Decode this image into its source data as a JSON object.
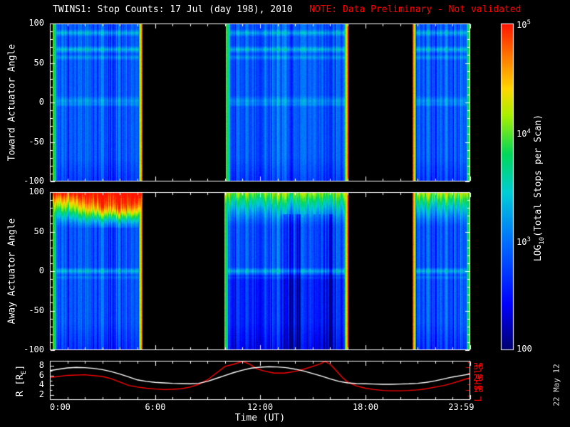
{
  "title": {
    "main": "TWINS1: Stop Counts: 17 Jul (day 198), 2010",
    "note": "NOTE: Data Preliminary - Not validated"
  },
  "datestamp": "22 May 12",
  "colors": {
    "background": "#000000",
    "foreground": "#ffffff",
    "note_red": "#ff0000"
  },
  "colorbar": {
    "label_pre": "LOG",
    "label_sub": "10",
    "label_post": "(Total Stops per Scan)",
    "ticks": [
      {
        "label": "10^5",
        "frac": 0
      },
      {
        "label": "10^4",
        "frac": 0.3333
      },
      {
        "label": "10^3",
        "frac": 0.6667
      },
      {
        "label": "100",
        "frac": 1
      }
    ],
    "vmin": 2,
    "vmax": 5,
    "stops": [
      [
        0,
        [
          0,
          0,
          110
        ]
      ],
      [
        0.14,
        [
          0,
          0,
          255
        ]
      ],
      [
        0.33,
        [
          0,
          110,
          255
        ]
      ],
      [
        0.48,
        [
          0,
          205,
          215
        ]
      ],
      [
        0.6,
        [
          0,
          215,
          90
        ]
      ],
      [
        0.72,
        [
          170,
          240,
          0
        ]
      ],
      [
        0.8,
        [
          255,
          215,
          0
        ]
      ],
      [
        0.9,
        [
          255,
          120,
          0
        ]
      ],
      [
        1,
        [
          255,
          20,
          0
        ]
      ]
    ]
  },
  "chart_data": [
    {
      "id": "toward",
      "type": "heatmap",
      "ylabel": "Toward Actuator Angle",
      "ylim": [
        -100,
        100
      ],
      "yticks": [
        100,
        50,
        0,
        -50,
        -100
      ],
      "x_range_hours": [
        0,
        24
      ],
      "base": 2.72,
      "stripe_amp": 0.85,
      "segments": [
        {
          "start": 0.15,
          "end": 5.3,
          "left_edge": 0.5,
          "right_edge": 1.0
        },
        {
          "start": 10.05,
          "end": 17.05,
          "left_edge": 0.45,
          "right_edge": 1.0
        },
        {
          "start": 20.7,
          "end": 24.0,
          "left_edge": 1.0,
          "right_edge": 0.45
        }
      ],
      "bands": [
        {
          "angle": 88,
          "width": 5,
          "boost": 0.45
        },
        {
          "angle": 67,
          "width": 5,
          "boost": 0.5
        },
        {
          "angle": 57,
          "width": 4,
          "boost": 0.3
        },
        {
          "angle": 2,
          "width": 7,
          "boost": 0.3
        },
        {
          "angle": -3,
          "width": 3,
          "boost": 0.15
        }
      ],
      "hot_top": false,
      "dark_below": -70,
      "dark_amp": 0.18
    },
    {
      "id": "away",
      "type": "heatmap",
      "ylabel": "Away Actuator Angle",
      "ylim": [
        -100,
        100
      ],
      "yticks": [
        100,
        50,
        0,
        -50,
        -100
      ],
      "x_range_hours": [
        0,
        24
      ],
      "base": 2.68,
      "stripe_amp": 0.9,
      "segments": [
        {
          "start": 0.15,
          "end": 5.3,
          "left_edge": 0.5,
          "right_edge": 1.0,
          "hot_amp": 1.0,
          "blob": {
            "hour": 3.8,
            "sigma": 1.7,
            "amp": 1.0
          }
        },
        {
          "start": 9.95,
          "end": 17.05,
          "left_edge": 0.5,
          "right_edge": 1.0,
          "hot_amp": 0.6,
          "adjust_below": -5,
          "adjust_amp": -0.22,
          "streaks": {
            "from": 13.2,
            "to": 16.4,
            "amp": 0.55
          }
        },
        {
          "start": 20.7,
          "end": 24.0,
          "left_edge": 1.0,
          "right_edge": 0.45,
          "hot_amp": 0.65
        }
      ],
      "bands": [
        {
          "angle": 0,
          "width": 5,
          "boost": 0.5
        },
        {
          "angle": -8,
          "width": 3,
          "boost": 0.2
        }
      ],
      "hot_top": true,
      "dark_below": -65,
      "dark_amp": 0.2
    },
    {
      "id": "orbit",
      "type": "line",
      "xlabel": "Time (UT)",
      "xticks": [
        {
          "hour": 0,
          "label": "0:00"
        },
        {
          "hour": 6,
          "label": "6:00"
        },
        {
          "hour": 12,
          "label": "12:00"
        },
        {
          "hour": 18,
          "label": "18:00"
        },
        {
          "hour": 24,
          "label": "23:59"
        }
      ],
      "left_axis": {
        "label_pre": "R [R",
        "label_sub": "E",
        "label_post": "]",
        "ticks": [
          8,
          6,
          4,
          2
        ],
        "range": [
          1,
          9
        ]
      },
      "right_axis": {
        "label": "L Shell",
        "ticks": [
          30,
          20,
          10
        ],
        "range": [
          1,
          36
        ],
        "color": "#ff0000"
      },
      "series": [
        {
          "name": "R",
          "axis": "left",
          "color": "#ffffff",
          "points": [
            [
              0,
              7.0
            ],
            [
              0.5,
              7.3
            ],
            [
              1,
              7.55
            ],
            [
              1.5,
              7.65
            ],
            [
              2,
              7.6
            ],
            [
              2.5,
              7.45
            ],
            [
              3,
              7.2
            ],
            [
              3.5,
              6.8
            ],
            [
              4,
              6.3
            ],
            [
              4.5,
              5.7
            ],
            [
              5,
              5.1
            ],
            [
              5.5,
              4.8
            ],
            [
              6,
              4.6
            ],
            [
              6.5,
              4.5
            ],
            [
              7,
              4.4
            ],
            [
              7.5,
              4.35
            ],
            [
              8,
              4.3
            ],
            [
              8.5,
              4.4
            ],
            [
              9,
              4.8
            ],
            [
              9.5,
              5.4
            ],
            [
              10,
              6.0
            ],
            [
              10.5,
              6.6
            ],
            [
              11,
              7.1
            ],
            [
              11.5,
              7.5
            ],
            [
              12,
              7.7
            ],
            [
              12.5,
              7.8
            ],
            [
              13,
              7.75
            ],
            [
              13.5,
              7.6
            ],
            [
              14,
              7.3
            ],
            [
              14.5,
              6.9
            ],
            [
              15,
              6.4
            ],
            [
              15.5,
              5.9
            ],
            [
              16,
              5.3
            ],
            [
              16.5,
              4.8
            ],
            [
              17,
              4.5
            ],
            [
              17.5,
              4.35
            ],
            [
              18,
              4.3
            ],
            [
              18.5,
              4.25
            ],
            [
              19,
              4.2
            ],
            [
              19.5,
              4.2
            ],
            [
              20,
              4.25
            ],
            [
              20.5,
              4.3
            ],
            [
              21,
              4.4
            ],
            [
              21.5,
              4.6
            ],
            [
              22,
              4.9
            ],
            [
              22.5,
              5.3
            ],
            [
              23,
              5.7
            ],
            [
              23.5,
              6.0
            ],
            [
              24,
              6.3
            ]
          ]
        },
        {
          "name": "L Shell",
          "axis": "right",
          "color": "#ff0000",
          "points": [
            [
              0,
              21
            ],
            [
              1,
              23
            ],
            [
              2,
              23.5
            ],
            [
              3,
              22
            ],
            [
              3.5,
              20
            ],
            [
              4,
              17
            ],
            [
              4.5,
              14
            ],
            [
              5,
              12.5
            ],
            [
              5.5,
              11.5
            ],
            [
              6,
              10.8
            ],
            [
              6.5,
              10.3
            ],
            [
              7,
              10.5
            ],
            [
              7.5,
              11
            ],
            [
              8,
              12.5
            ],
            [
              8.5,
              15
            ],
            [
              9,
              19
            ],
            [
              9.5,
              25
            ],
            [
              10,
              31
            ],
            [
              10.5,
              33
            ],
            [
              11,
              35.5
            ],
            [
              11.4,
              33
            ],
            [
              11.8,
              29
            ],
            [
              12.2,
              27
            ],
            [
              12.8,
              25
            ],
            [
              13.4,
              25
            ],
            [
              14,
              26.5
            ],
            [
              14.5,
              28.5
            ],
            [
              15,
              31
            ],
            [
              15.4,
              33
            ],
            [
              15.7,
              35.5
            ],
            [
              16,
              33
            ],
            [
              16.3,
              28
            ],
            [
              16.7,
              21
            ],
            [
              17,
              17
            ],
            [
              17.5,
              13.5
            ],
            [
              18,
              11.5
            ],
            [
              18.5,
              10.3
            ],
            [
              19,
              9.5
            ],
            [
              19.5,
              9.2
            ],
            [
              20,
              9.2
            ],
            [
              20.5,
              9.5
            ],
            [
              21,
              10
            ],
            [
              21.5,
              11
            ],
            [
              22,
              12.5
            ],
            [
              22.5,
              14
            ],
            [
              23,
              16
            ],
            [
              23.5,
              18.5
            ],
            [
              24,
              21
            ]
          ]
        }
      ]
    }
  ]
}
